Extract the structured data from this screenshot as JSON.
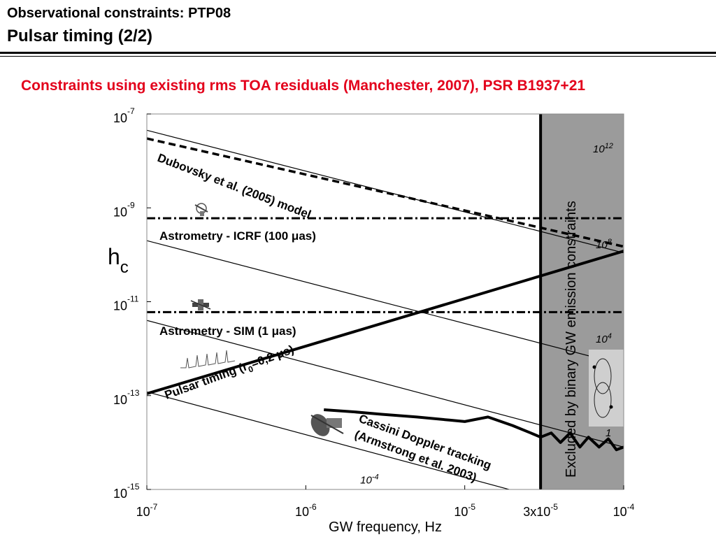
{
  "slide": {
    "header_line1": "Observational constraints: PTP08",
    "header_line2": "Pulsar timing (2/2)",
    "subtitle": "Constraints using existing rms TOA  residuals (Manchester, 2007), PSR B1937+21"
  },
  "chart_data": {
    "type": "line",
    "xlabel": "GW frequency, Hz",
    "ylabel": "h",
    "ylabel_subscript": "c",
    "x_scale": "log",
    "y_scale": "log",
    "xlim": [
      1e-07,
      0.0001
    ],
    "ylim": [
      1e-15,
      1e-07
    ],
    "x_ticks": [
      {
        "value": 1e-07,
        "base": "10",
        "exp": "-7"
      },
      {
        "value": 1e-06,
        "base": "10",
        "exp": "-6"
      },
      {
        "value": 1e-05,
        "base": "10",
        "exp": "-5"
      },
      {
        "value": 3e-05,
        "base": "3x10",
        "exp": "-5"
      },
      {
        "value": 0.0001,
        "base": "10",
        "exp": "-4"
      }
    ],
    "y_ticks": [
      {
        "value": 1e-07,
        "base": "10",
        "exp": "-7"
      },
      {
        "value": 1e-09,
        "base": "10",
        "exp": "-9"
      },
      {
        "value": 1e-11,
        "base": "10",
        "exp": "-11"
      },
      {
        "value": 1e-13,
        "base": "10",
        "exp": "-13"
      },
      {
        "value": 1e-15,
        "base": "10",
        "exp": "-15"
      }
    ],
    "colors": {
      "excluded_region": "#9b9b9b",
      "lines": "#000000"
    },
    "excluded_region": {
      "x_from": 3e-05,
      "x_to": 0.0001,
      "label": "Excluded by binary GW emission constraints"
    },
    "diagonal_lines": [
      {
        "label": "10",
        "exp": "12",
        "points": [
          [
            1e-07,
            4.5e-08
          ],
          [
            0.0001,
            1.1e-10
          ]
        ]
      },
      {
        "label": "10",
        "exp": "8",
        "points": [
          [
            1e-07,
            2e-10
          ],
          [
            0.0001,
            4.5e-13
          ]
        ]
      },
      {
        "label": "10",
        "exp": "4",
        "points": [
          [
            1e-07,
            4e-12
          ],
          [
            0.0001,
            8e-15
          ]
        ]
      },
      {
        "label": "1",
        "exp": "",
        "points": [
          [
            1e-07,
            1.2e-13
          ],
          [
            0.0001,
            2.2e-16
          ]
        ]
      }
    ],
    "extra_line_labels": [
      {
        "label": "10",
        "exp": "-4",
        "x": 2.2e-06,
        "y": 1.9e-15
      }
    ],
    "series": [
      {
        "name": "Dubovsky et al. (2005) model",
        "style": "dashed",
        "x": [
          1e-07,
          0.0001
        ],
        "y": [
          3e-08,
          1.5e-10
        ]
      },
      {
        "name": "Astrometry - ICRF (100 μas)",
        "style": "dashdot",
        "x": [
          1e-07,
          0.0001
        ],
        "y": [
          6e-10,
          6e-10
        ]
      },
      {
        "name": "Astrometry - SIM (1 μas)",
        "style": "dashdot",
        "x": [
          1e-07,
          0.0001
        ],
        "y": [
          6e-12,
          6e-12
        ]
      },
      {
        "name": "Pulsar timing (r0=0,2 μs)",
        "style": "solid",
        "x": [
          1e-07,
          0.0001
        ],
        "y": [
          1.1e-13,
          1.2e-10
        ]
      },
      {
        "name": "Cassini Doppler tracking (Armstrong et al. 2003)",
        "style": "solid",
        "x": [
          1.3e-06,
          2e-06,
          3e-06,
          5e-06,
          8e-06,
          1e-05,
          1.4e-05,
          2e-05,
          2.6e-05,
          3e-05,
          3.5e-05,
          4e-05,
          4.6e-05,
          5.3e-05,
          6e-05,
          7e-05,
          8e-05,
          9e-05,
          0.0001
        ],
        "y": [
          5e-14,
          4.5e-14,
          4e-14,
          3.5e-14,
          3e-14,
          2.8e-14,
          3.5e-14,
          2.3e-14,
          1.6e-14,
          1.3e-14,
          1.6e-14,
          1e-14,
          1.6e-14,
          8e-15,
          1.3e-14,
          8e-15,
          1.2e-14,
          7e-15,
          8e-15
        ]
      }
    ],
    "annotations": [
      {
        "text": "Dubovsky et al. (2005) model"
      },
      {
        "text": "Astrometry - ICRF (100 μas)"
      },
      {
        "text": "Astrometry - SIM (1 μas)"
      },
      {
        "text": "Pulsar timing (r",
        "sub": "0",
        "rest": "=0,2 μs)"
      },
      {
        "text": "Cassini Doppler tracking"
      },
      {
        "text": "(Armstrong et al. 2003)"
      }
    ],
    "grid": false
  }
}
